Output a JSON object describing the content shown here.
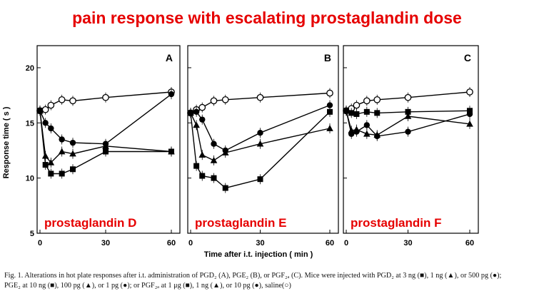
{
  "title": "pain response with escalating prostaglandin dose",
  "caption": "Fig. 1. Alterations in hot plate responses after i.t. administration of PGD₂ (A), PGE₂ (B), or PGF₂ₐ (C). Mice were injected with PGD₂ at 3 ng (■), 1 ng (▲), or 500 pg (●); PGE₂ at 10 ng (■), 100 pg (▲), or 1 pg (●); or PGF₂ₐ at 1 μg (■), 1 ng (▲), or 10 pg (●), saline(○)",
  "shared": {
    "ylabel": "Response time ( s )",
    "xlabel": "Time after i.t. injection ( min )"
  },
  "chart_data": [
    {
      "type": "line",
      "panel": "A",
      "annotation": "prostaglandin D",
      "x_ticks": [
        "0",
        "30",
        "60"
      ],
      "y_ticks": [
        "5",
        "10",
        "15",
        "20"
      ],
      "xlim": [
        0,
        60
      ],
      "ylim": [
        5,
        22
      ],
      "series": [
        {
          "marker": "open-circle",
          "x": [
            0,
            2.5,
            5,
            10,
            15,
            30,
            60
          ],
          "y": [
            16.1,
            16.2,
            16.6,
            17.1,
            17.0,
            17.3,
            17.8
          ]
        },
        {
          "marker": "filled-circle",
          "x": [
            0,
            2.5,
            5,
            10,
            15,
            30,
            60
          ],
          "y": [
            16.1,
            15.0,
            14.5,
            13.5,
            13.2,
            13.1,
            17.6
          ]
        },
        {
          "marker": "triangle",
          "x": [
            0,
            2.5,
            5,
            10,
            15,
            30,
            60
          ],
          "y": [
            16.1,
            12.0,
            11.4,
            12.4,
            12.2,
            12.9,
            12.4
          ]
        },
        {
          "marker": "square",
          "x": [
            0,
            2.5,
            5,
            10,
            15,
            30,
            60
          ],
          "y": [
            16.1,
            11.2,
            10.4,
            10.4,
            10.8,
            12.4,
            12.4
          ]
        }
      ]
    },
    {
      "type": "line",
      "panel": "B",
      "annotation": "prostaglandin E",
      "x_ticks": [
        "0",
        "30",
        "60"
      ],
      "y_ticks": [
        "5",
        "10",
        "15",
        "20"
      ],
      "xlim": [
        0,
        60
      ],
      "ylim": [
        5,
        22
      ],
      "series": [
        {
          "marker": "open-circle",
          "x": [
            0,
            2.5,
            5,
            10,
            15,
            30,
            60
          ],
          "y": [
            15.9,
            16.2,
            16.4,
            17.0,
            17.1,
            17.3,
            17.7
          ]
        },
        {
          "marker": "filled-circle",
          "x": [
            0,
            2.5,
            5,
            10,
            15,
            30,
            60
          ],
          "y": [
            15.9,
            16.0,
            15.3,
            13.1,
            12.5,
            14.1,
            16.6
          ]
        },
        {
          "marker": "triangle",
          "x": [
            0,
            2.5,
            5,
            10,
            15,
            30,
            60
          ],
          "y": [
            15.9,
            14.8,
            12.1,
            11.6,
            12.3,
            13.1,
            14.5
          ]
        },
        {
          "marker": "square",
          "x": [
            0,
            2.5,
            5,
            10,
            15,
            30,
            60
          ],
          "y": [
            15.9,
            11.1,
            10.2,
            10.0,
            9.1,
            9.9,
            16.0
          ]
        }
      ]
    },
    {
      "type": "line",
      "panel": "C",
      "annotation": "prostaglandin F",
      "x_ticks": [
        "0",
        "30",
        "60"
      ],
      "y_ticks": [
        "5",
        "10",
        "15",
        "20"
      ],
      "xlim": [
        0,
        60
      ],
      "ylim": [
        5,
        22
      ],
      "series": [
        {
          "marker": "open-circle",
          "x": [
            0,
            2.5,
            5,
            10,
            15,
            30,
            60
          ],
          "y": [
            16.1,
            16.3,
            16.6,
            17.0,
            17.1,
            17.3,
            17.8
          ]
        },
        {
          "marker": "filled-circle",
          "x": [
            0,
            2.5,
            5,
            10,
            15,
            30,
            60
          ],
          "y": [
            16.1,
            14.0,
            14.2,
            14.8,
            13.8,
            14.2,
            15.8
          ]
        },
        {
          "marker": "triangle",
          "x": [
            0,
            2.5,
            5,
            10,
            15,
            30,
            60
          ],
          "y": [
            16.1,
            14.3,
            14.4,
            14.0,
            13.9,
            15.6,
            14.9
          ]
        },
        {
          "marker": "square",
          "x": [
            0,
            2.5,
            5,
            10,
            15,
            30,
            60
          ],
          "y": [
            16.1,
            15.9,
            15.8,
            16.0,
            15.9,
            16.0,
            16.1
          ]
        }
      ]
    }
  ]
}
